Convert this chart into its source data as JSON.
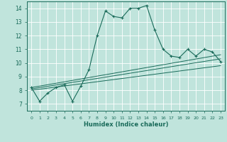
{
  "xlabel": "Humidex (Indice chaleur)",
  "xlim": [
    -0.5,
    23.5
  ],
  "ylim": [
    6.5,
    14.5
  ],
  "ytick_values": [
    7,
    8,
    9,
    10,
    11,
    12,
    13,
    14
  ],
  "background_color": "#c0e4dc",
  "grid_color": "#ffffff",
  "line_color": "#1a6b5a",
  "main_series": {
    "x": [
      0,
      1,
      2,
      3,
      4,
      5,
      6,
      7,
      8,
      9,
      10,
      11,
      12,
      13,
      14,
      15,
      16,
      17,
      18,
      19,
      20,
      21,
      22,
      23
    ],
    "y": [
      8.2,
      7.2,
      7.8,
      8.2,
      8.4,
      7.2,
      8.3,
      9.5,
      12.0,
      13.8,
      13.4,
      13.3,
      14.0,
      14.0,
      14.2,
      12.4,
      11.0,
      10.5,
      10.4,
      11.0,
      10.5,
      11.0,
      10.8,
      10.1
    ]
  },
  "trend_lines": [
    {
      "x": [
        0,
        23
      ],
      "y": [
        8.0,
        9.8
      ]
    },
    {
      "x": [
        0,
        23
      ],
      "y": [
        8.1,
        10.3
      ]
    },
    {
      "x": [
        0,
        23
      ],
      "y": [
        8.2,
        10.6
      ]
    }
  ]
}
